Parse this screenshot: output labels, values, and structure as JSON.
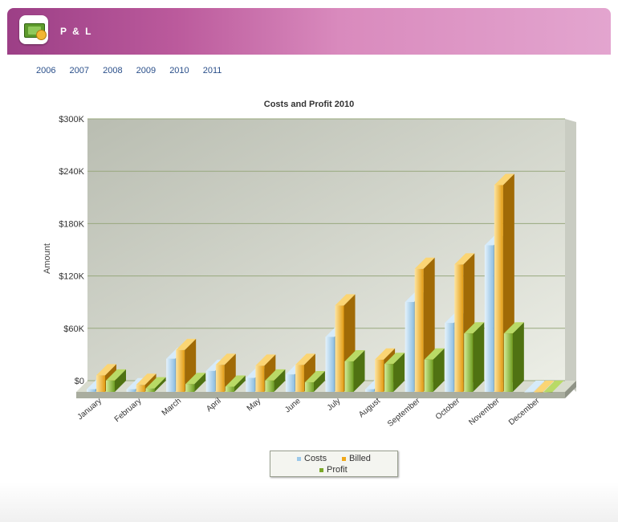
{
  "app": {
    "title": "P & L",
    "logo_icon": "money-icon"
  },
  "year_tabs": [
    "2006",
    "2007",
    "2008",
    "2009",
    "2010",
    "2011"
  ],
  "chart_data": {
    "type": "bar",
    "title": "Costs and Profit 2010",
    "ylabel": "Amount",
    "xlabel": "",
    "ylim": [
      0,
      300000
    ],
    "yticks": [
      "$0",
      "$60K",
      "$120K",
      "$180K",
      "$240K",
      "$300K"
    ],
    "categories": [
      "January",
      "February",
      "March",
      "April",
      "May",
      "June",
      "July",
      "August",
      "September",
      "October",
      "November",
      "December"
    ],
    "series": [
      {
        "name": "Costs",
        "color": "#9cc9ea",
        "values": [
          3000,
          3000,
          38000,
          24000,
          16000,
          20000,
          63000,
          3000,
          103000,
          79000,
          168000,
          0
        ]
      },
      {
        "name": "Billed",
        "color": "#f0a818",
        "values": [
          19000,
          8000,
          48000,
          31000,
          30000,
          31000,
          99000,
          37000,
          141000,
          146000,
          237000,
          0
        ]
      },
      {
        "name": "Profit",
        "color": "#7aa828",
        "values": [
          13000,
          4000,
          9000,
          6000,
          13000,
          11000,
          35000,
          32000,
          37000,
          67000,
          67000,
          0
        ]
      }
    ],
    "legend_position": "bottom",
    "grid": true
  }
}
